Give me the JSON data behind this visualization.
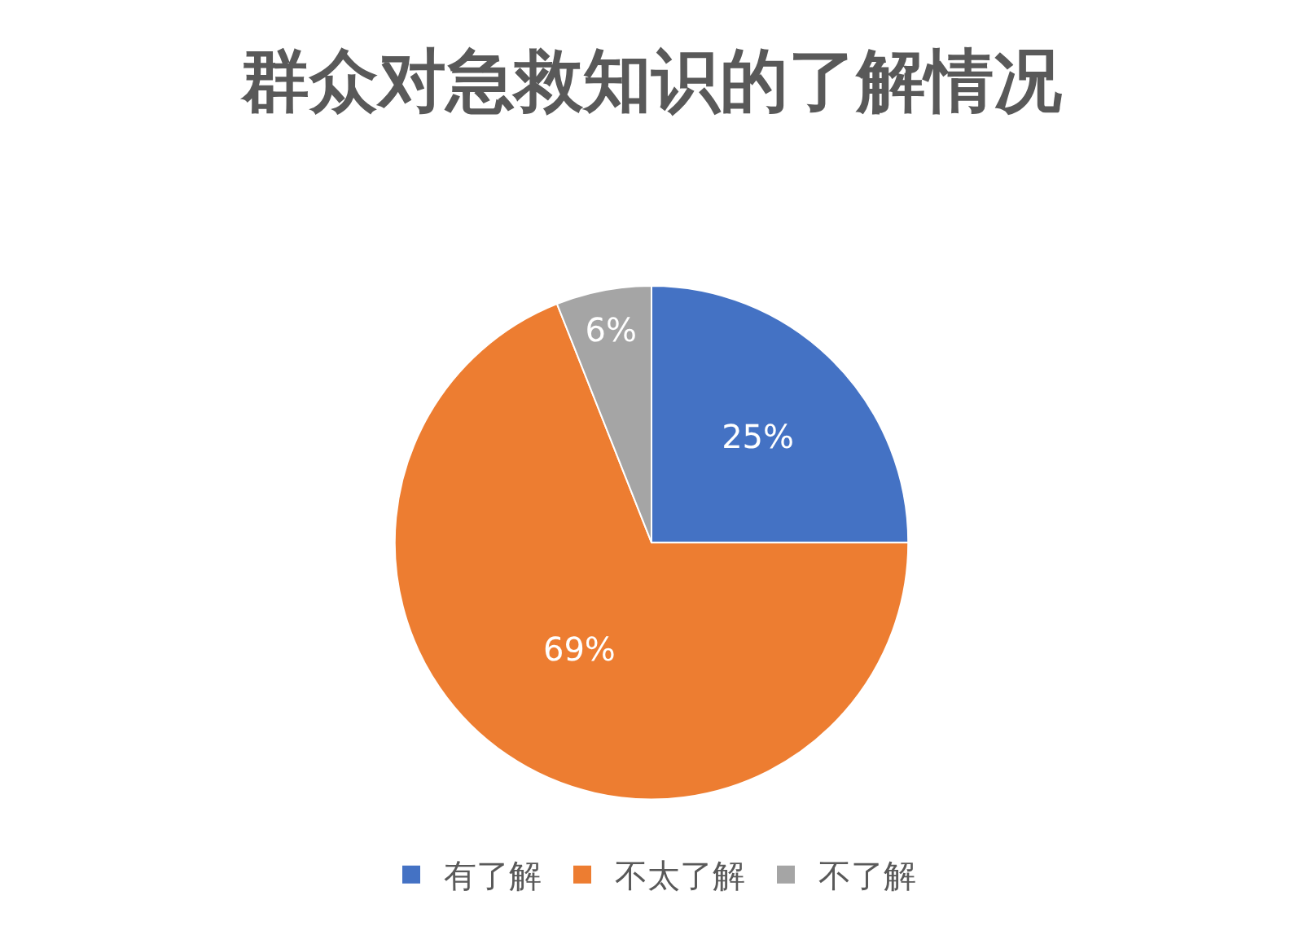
{
  "chart_data": {
    "type": "pie",
    "title": "群众对急救知识的了解情况",
    "categories": [
      "有了解",
      "不太了解",
      "不了解"
    ],
    "values": [
      25,
      69,
      6
    ],
    "value_labels": [
      "25%",
      "69%",
      "6%"
    ],
    "colors": [
      "#4472c4",
      "#ed7d31",
      "#a5a5a5"
    ],
    "legend": "bottom"
  }
}
